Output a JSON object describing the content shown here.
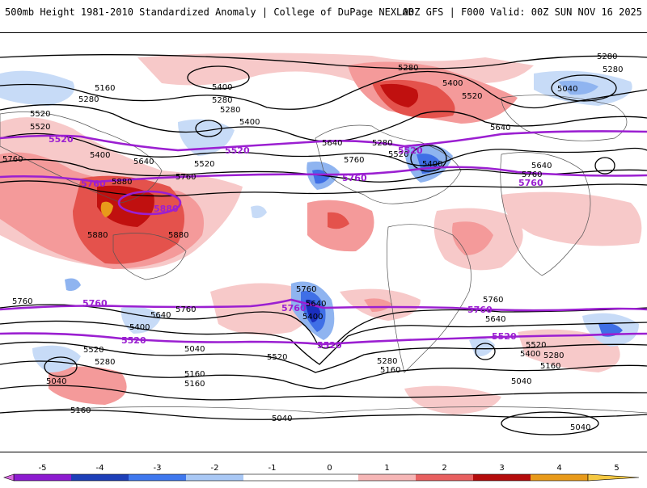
{
  "header": {
    "title": "500mb Height 1981-2010 Standardized Anomaly | College of DuPage NEXLAB",
    "run_info": "00Z GFS | F000 Valid: 00Z SUN NOV 16 2025"
  },
  "colors": {
    "contour": "#000000",
    "highlight_contour": "#9b1fd1",
    "pos1": "#f7c9c9",
    "pos2": "#f49a9a",
    "pos3": "#e4524c",
    "pos4": "#c0100f",
    "neg1": "#c7dbf7",
    "neg2": "#8fb4f0",
    "neg3": "#3f6fe6",
    "neg4": "#1a2fbf"
  },
  "contour_labels": [
    {
      "text": "5160",
      "region": "n-pacific-west"
    },
    {
      "text": "5280",
      "region": "n-pacific-west"
    },
    {
      "text": "5520",
      "region": "siberia"
    },
    {
      "text": "5400",
      "region": "aleutians"
    },
    {
      "text": "5280",
      "region": "aleutians"
    },
    {
      "text": "5280",
      "region": "bering"
    },
    {
      "text": "5400",
      "region": "alaska"
    },
    {
      "text": "5520",
      "region": "gulf-of-alaska"
    },
    {
      "text": "5640",
      "region": "pacific"
    },
    {
      "text": "5760",
      "region": "pacific"
    },
    {
      "text": "5400",
      "region": "canada"
    },
    {
      "text": "5520",
      "region": "canada"
    },
    {
      "text": "5280",
      "region": "greenland"
    },
    {
      "text": "5400",
      "region": "greenland"
    },
    {
      "text": "5520",
      "region": "greenland"
    },
    {
      "text": "5640",
      "region": "atlantic"
    },
    {
      "text": "5280",
      "region": "arctic"
    },
    {
      "text": "5040",
      "region": "europe"
    },
    {
      "text": "5400",
      "region": "atlantic"
    },
    {
      "text": "5640",
      "region": "atlantic"
    },
    {
      "text": "5760",
      "region": "africa"
    },
    {
      "text": "5640",
      "region": "us"
    },
    {
      "text": "5520",
      "region": "us"
    },
    {
      "text": "5280",
      "region": "us"
    },
    {
      "text": "5760",
      "region": "us"
    },
    {
      "text": "5760",
      "region": "asia"
    },
    {
      "text": "5880",
      "region": "w-pacific"
    },
    {
      "text": "5880",
      "region": "w-pacific"
    },
    {
      "text": "5880",
      "region": "w-pacific"
    },
    {
      "text": "5760",
      "region": "s-pacific"
    },
    {
      "text": "5640",
      "region": "s-pacific"
    },
    {
      "text": "5400",
      "region": "s-pacific"
    },
    {
      "text": "5520",
      "region": "s-pacific"
    },
    {
      "text": "5280",
      "region": "s-pacific"
    },
    {
      "text": "5040",
      "region": "s-pacific"
    },
    {
      "text": "5160",
      "region": "s-pacific"
    },
    {
      "text": "5760",
      "region": "s-pacific"
    },
    {
      "text": "5040",
      "region": "s-pacific"
    },
    {
      "text": "5160",
      "region": "s-pacific"
    },
    {
      "text": "5160",
      "region": "s-pacific"
    },
    {
      "text": "5040",
      "region": "s-pacific"
    },
    {
      "text": "5520",
      "region": "s-pacific"
    },
    {
      "text": "5760",
      "region": "s-america"
    },
    {
      "text": "5640",
      "region": "s-america"
    },
    {
      "text": "5400",
      "region": "s-america"
    },
    {
      "text": "5280",
      "region": "s-america"
    },
    {
      "text": "5160",
      "region": "s-america"
    },
    {
      "text": "5760",
      "region": "s-atlantic"
    },
    {
      "text": "5640",
      "region": "s-atlantic"
    },
    {
      "text": "5520",
      "region": "s-atlantic"
    },
    {
      "text": "5400",
      "region": "s-atlantic"
    },
    {
      "text": "5280",
      "region": "s-atlantic"
    },
    {
      "text": "5160",
      "region": "s-atlantic"
    },
    {
      "text": "5040",
      "region": "s-atlantic"
    },
    {
      "text": "5040",
      "region": "southern-ocean"
    },
    {
      "text": "5280",
      "region": "arctic-east"
    }
  ],
  "highlight_labels": [
    {
      "text": "5520",
      "region": "n-pacific"
    },
    {
      "text": "5520",
      "region": "n-pacific"
    },
    {
      "text": "5520",
      "region": "n-america"
    },
    {
      "text": "5760",
      "region": "w-pacific"
    },
    {
      "text": "5880",
      "region": "w-pacific"
    },
    {
      "text": "5760",
      "region": "n-america"
    },
    {
      "text": "5760",
      "region": "africa"
    },
    {
      "text": "5760",
      "region": "s-pacific"
    },
    {
      "text": "5760",
      "region": "s-pacific"
    },
    {
      "text": "5760",
      "region": "s-atlantic"
    },
    {
      "text": "5520",
      "region": "s-pacific"
    },
    {
      "text": "5520",
      "region": "s-america"
    },
    {
      "text": "5520",
      "region": "s-atlantic"
    }
  ],
  "colorbar": {
    "ticks": [
      "-5",
      "-4",
      "-3",
      "-2",
      "-1",
      "0",
      "1",
      "2",
      "3",
      "4",
      "5"
    ],
    "colors": [
      "#d868e0",
      "#8d1bd0",
      "#1d3fb8",
      "#3f78ee",
      "#a9c8f5",
      "#ffffff",
      "#ffffff",
      "#f6b6b6",
      "#e86060",
      "#b40c0c",
      "#e89a1a",
      "#f5c842"
    ]
  }
}
